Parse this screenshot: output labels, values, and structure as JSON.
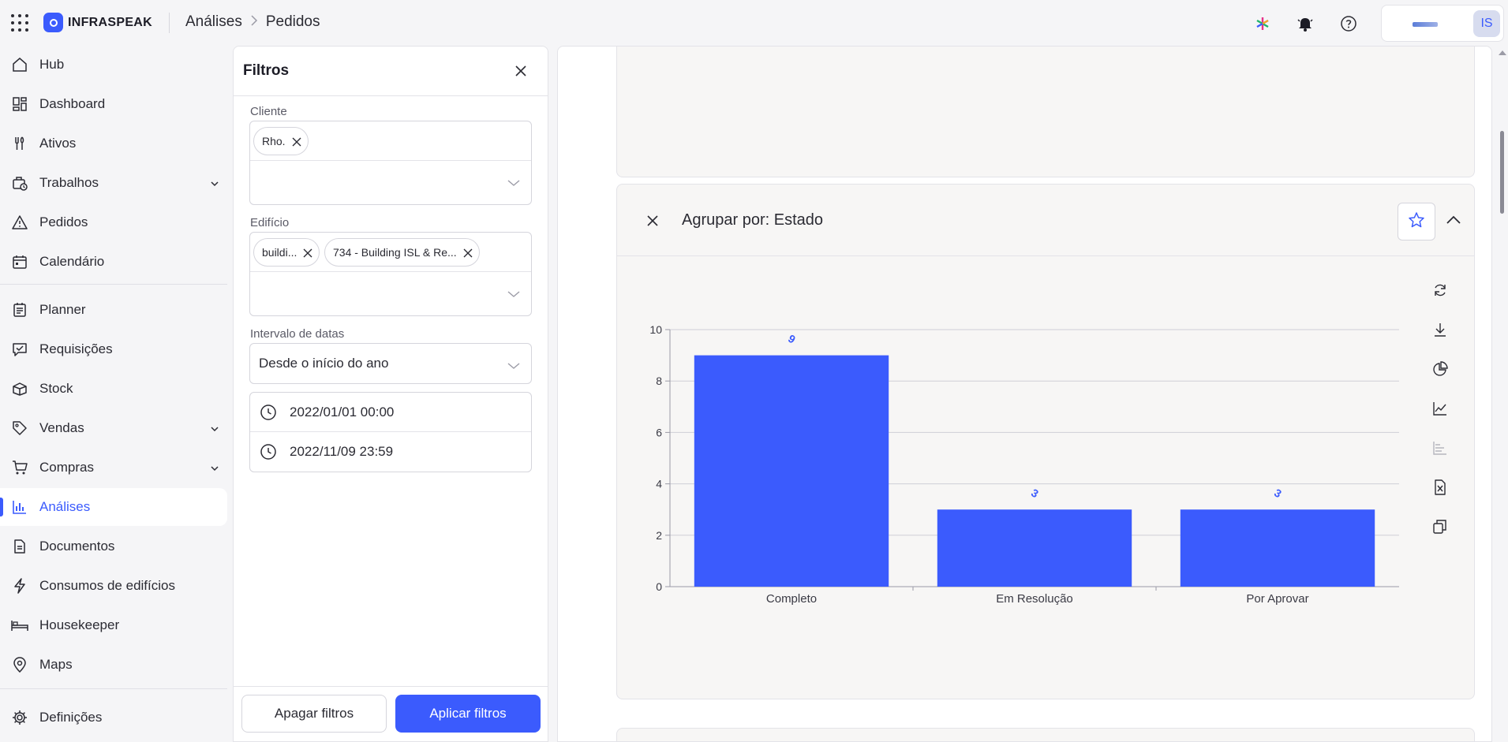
{
  "app": {
    "brand": "INFRASPEAK",
    "breadcrumb": [
      "Análises",
      "Pedidos"
    ],
    "avatar_initials": "IS"
  },
  "sidebar": {
    "items": [
      {
        "label": "Hub",
        "icon": "home-icon"
      },
      {
        "label": "Dashboard",
        "icon": "dashboard-icon"
      },
      {
        "label": "Ativos",
        "icon": "wrench-icon"
      },
      {
        "label": "Trabalhos",
        "icon": "briefcase-clock-icon",
        "expandable": true
      },
      {
        "label": "Pedidos",
        "icon": "warning-triangle-icon"
      },
      {
        "label": "Calendário",
        "icon": "calendar-icon"
      },
      {
        "label": "Planner",
        "icon": "planner-icon"
      },
      {
        "label": "Requisições",
        "icon": "requisition-icon"
      },
      {
        "label": "Stock",
        "icon": "box-icon"
      },
      {
        "label": "Vendas",
        "icon": "tag-icon",
        "expandable": true
      },
      {
        "label": "Compras",
        "icon": "cart-icon",
        "expandable": true
      },
      {
        "label": "Análises",
        "icon": "bar-chart-icon",
        "active": true
      },
      {
        "label": "Documentos",
        "icon": "document-icon"
      },
      {
        "label": "Consumos de edifícios",
        "icon": "lightning-icon"
      },
      {
        "label": "Housekeeper",
        "icon": "bed-icon"
      },
      {
        "label": "Maps",
        "icon": "map-pin-icon"
      },
      {
        "label": "Definições",
        "icon": "gear-icon"
      }
    ]
  },
  "filters": {
    "title": "Filtros",
    "client_label": "Cliente",
    "client_chips": [
      "Rho..."
    ],
    "building_label": "Edifício",
    "building_chips": [
      "buildi...",
      "734 - Building ISL & Re..."
    ],
    "date_range_label": "Intervalo de datas",
    "date_range_value": "Desde o início do ano",
    "date_from": "2022/01/01 00:00",
    "date_to": "2022/11/09 23:59",
    "clear_button": "Apagar filtros",
    "apply_button": "Aplicar filtros"
  },
  "widget": {
    "title": "Agrupar por: Estado",
    "toolbar": [
      "refresh-icon",
      "download-icon",
      "pie-chart-icon",
      "line-chart-icon",
      "horizontal-bar-icon",
      "excel-icon",
      "copy-icon"
    ]
  },
  "chart_data": {
    "type": "bar",
    "categories": [
      "Completo",
      "Em Resolução",
      "Por Aprovar"
    ],
    "values": [
      9,
      3,
      3
    ],
    "data_labels": [
      "9",
      "3",
      "3"
    ],
    "title": "",
    "xlabel": "",
    "ylabel": "",
    "ylim": [
      0,
      10
    ],
    "yticks": [
      "0",
      "2",
      "4",
      "6",
      "8",
      "10"
    ],
    "grid": true,
    "bar_color": "#3b5bfd",
    "label_color": "#3b5bfd"
  },
  "colors": {
    "accent": "#3b5bfd",
    "background": "#f5f5f7",
    "card": "#f7f6f5"
  }
}
